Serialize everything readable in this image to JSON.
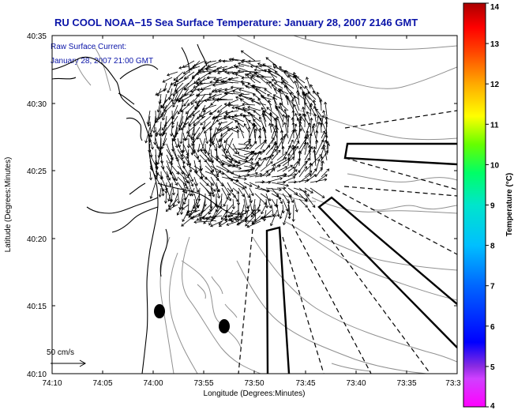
{
  "chart_data": {
    "type": "map",
    "title": "RU COOL  NOAA−15  Sea Surface Temperature:  January 28, 2007 2146 GMT",
    "annotation_line1": "Raw Surface Current:",
    "annotation_line2": "January 28, 2007 21:00 GMT",
    "xlabel": "Longitude (Degrees:Minutes)",
    "ylabel": "Latitude (Degrees:Minutes)",
    "x_ticks": [
      "74:10",
      "74:05",
      "74:00",
      "73:55",
      "73:50",
      "73:45",
      "73:40",
      "73:35",
      "73:3"
    ],
    "y_ticks": [
      "40:35",
      "40:30",
      "40:25",
      "40:20",
      "40:15",
      "40:10"
    ],
    "xlim": [
      -74.1667,
      -73.5
    ],
    "ylim": [
      40.1667,
      40.5833
    ],
    "colorbar": {
      "label": "Temperature (°C)",
      "range": [
        4,
        14
      ],
      "ticks": [
        "4",
        "5",
        "6",
        "7",
        "8",
        "9",
        "10",
        "11",
        "12",
        "13",
        "14"
      ]
    },
    "scale_arrow_label": "50 cm/s",
    "scale_arrow_cms": 50,
    "vector_field": {
      "description_units": "cm/s",
      "region_lon": [
        -74.0,
        -73.68
      ],
      "region_lat": [
        40.35,
        40.55
      ]
    },
    "grid": false
  },
  "colors": {
    "title": "#0a14a8",
    "vectors": "#000000",
    "coastline": "#000000",
    "bathymetry": "#909090",
    "colorbar_stops": [
      "#ff00ff",
      "#8a2be2",
      "#0000ff",
      "#00bfff",
      "#00ff99",
      "#33ff33",
      "#ccff00",
      "#ffff00",
      "#ffa500",
      "#ff3300",
      "#cc0000"
    ]
  }
}
